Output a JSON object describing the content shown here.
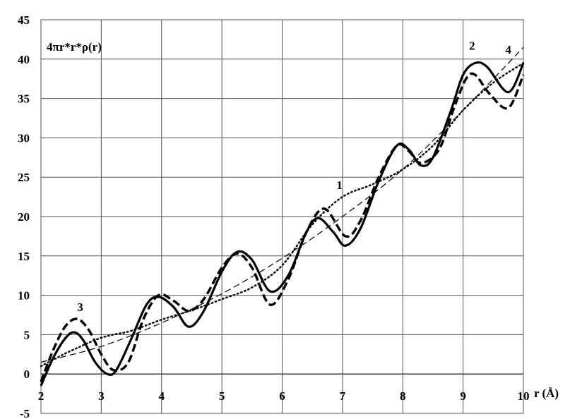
{
  "chart_data": {
    "type": "line",
    "title": "",
    "ylabel": "4πr*r*ρ(r)",
    "xlabel": "r (Å)",
    "xlim": [
      2,
      10
    ],
    "ylim": [
      -5,
      45
    ],
    "x_ticks": [
      2,
      3,
      4,
      5,
      6,
      7,
      8,
      9,
      10
    ],
    "y_ticks": [
      -5,
      0,
      5,
      10,
      15,
      20,
      25,
      30,
      35,
      40,
      45
    ],
    "grid": true,
    "series": [
      {
        "name": "1",
        "style": "dotted",
        "x": [
          2.0,
          2.2,
          2.4,
          2.6,
          2.8,
          3.0,
          3.2,
          3.5,
          4.0,
          4.5,
          5.0,
          5.5,
          6.0,
          6.5,
          7.0,
          7.5,
          8.0,
          8.5,
          9.0,
          9.5,
          10.0
        ],
        "y": [
          1.0,
          1.8,
          2.6,
          3.3,
          4.0,
          4.6,
          5.0,
          5.5,
          6.9,
          8.1,
          9.5,
          11.0,
          13.8,
          19.0,
          22.5,
          24.1,
          26.0,
          29.0,
          33.5,
          37.0,
          39.5
        ]
      },
      {
        "name": "2",
        "style": "solid",
        "x": [
          2.0,
          2.2,
          2.4,
          2.55,
          2.7,
          2.9,
          3.1,
          3.25,
          3.5,
          3.75,
          3.95,
          4.2,
          4.45,
          4.7,
          5.0,
          5.25,
          5.5,
          5.8,
          6.1,
          6.4,
          6.6,
          6.85,
          7.05,
          7.3,
          7.6,
          7.9,
          8.1,
          8.3,
          8.5,
          8.8,
          9.0,
          9.2,
          9.4,
          9.75,
          10.0
        ],
        "y": [
          -1.5,
          2.0,
          4.5,
          5.3,
          4.3,
          1.5,
          0.0,
          0.5,
          4.5,
          8.8,
          9.8,
          8.5,
          6.0,
          8.0,
          13.0,
          15.5,
          14.5,
          10.5,
          12.5,
          18.0,
          19.8,
          18.0,
          16.3,
          18.5,
          24.5,
          29.0,
          28.5,
          26.5,
          27.5,
          33.5,
          38.0,
          39.5,
          39.0,
          35.8,
          39.5
        ]
      },
      {
        "name": "3",
        "style": "dashed-bold",
        "x": [
          2.0,
          2.2,
          2.4,
          2.6,
          2.8,
          3.0,
          3.2,
          3.45,
          3.7,
          3.95,
          4.2,
          4.45,
          4.7,
          5.0,
          5.25,
          5.5,
          5.8,
          6.1,
          6.4,
          6.7,
          7.05,
          7.3,
          7.6,
          7.9,
          8.1,
          8.3,
          8.6,
          8.85,
          9.05,
          9.2,
          9.45,
          9.75,
          10.0
        ],
        "y": [
          -1.0,
          3.0,
          6.0,
          7.0,
          5.5,
          2.5,
          0.5,
          1.5,
          7.0,
          10.0,
          9.3,
          8.0,
          9.5,
          13.5,
          15.3,
          13.5,
          8.8,
          12.0,
          18.0,
          21.0,
          17.5,
          19.5,
          25.0,
          29.0,
          28.3,
          26.8,
          28.5,
          33.8,
          37.5,
          38.0,
          35.5,
          33.8,
          38.0
        ]
      },
      {
        "name": "4",
        "style": "dashed-thin",
        "x": [
          2.0,
          3.0,
          4.0,
          5.0,
          6.0,
          7.0,
          8.0,
          9.0,
          10.0
        ],
        "y": [
          1.5,
          3.5,
          6.5,
          10.2,
          14.7,
          20.0,
          26.0,
          33.5,
          41.5
        ]
      }
    ],
    "annotations": [
      {
        "text": "1",
        "x": 6.95,
        "y": 23.5
      },
      {
        "text": "2",
        "x": 9.15,
        "y": 41.2
      },
      {
        "text": "3",
        "x": 2.65,
        "y": 8.0
      },
      {
        "text": "4",
        "x": 9.75,
        "y": 40.7
      }
    ]
  }
}
